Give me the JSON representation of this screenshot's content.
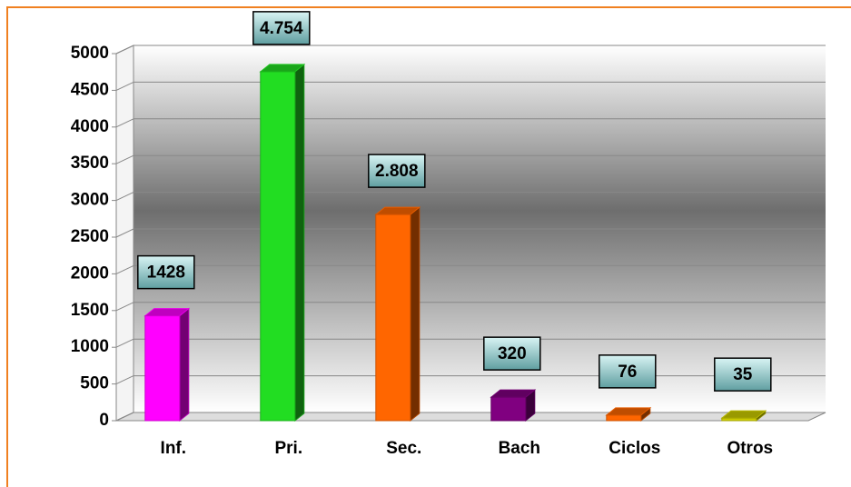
{
  "chart_data": {
    "type": "bar3d",
    "categories": [
      "Inf.",
      "Pri.",
      "Sec.",
      "Bach",
      "Ciclos",
      "Otros"
    ],
    "values": [
      1428,
      4754,
      2808,
      320,
      76,
      35
    ],
    "value_labels": [
      "1428",
      "4.754",
      "2.808",
      "320",
      "76",
      "35"
    ],
    "colors": [
      "#ff00ff",
      "#22dd22",
      "#ff6600",
      "#800080",
      "#ff6600",
      "#cccc00"
    ],
    "ylim": [
      0,
      5000
    ],
    "yticks": [
      0,
      500,
      1000,
      1500,
      2000,
      2500,
      3000,
      3500,
      4000,
      4500,
      5000
    ],
    "grid": true
  }
}
